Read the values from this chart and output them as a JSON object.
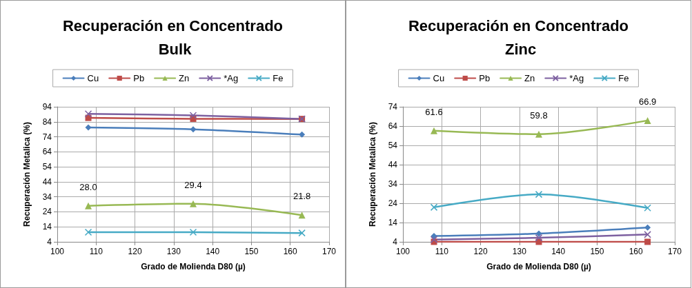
{
  "chart_data": [
    {
      "type": "line",
      "title": "Recuperación en Concentrado Bulk",
      "xlabel": "Grado de Molienda D80 (µ)",
      "ylabel": "Recuperación Metalica (%)",
      "x": [
        108,
        135,
        163
      ],
      "xlim": [
        100,
        170
      ],
      "xticks": [
        100,
        110,
        120,
        130,
        140,
        150,
        160,
        170
      ],
      "ylim": [
        4,
        94
      ],
      "yticks": [
        4,
        14,
        24,
        34,
        44,
        54,
        64,
        74,
        84,
        94
      ],
      "grid": true,
      "legend": "top",
      "series": [
        {
          "name": "Cu",
          "color": "#4a7ebb",
          "marker": "diamond",
          "values": [
            80.2,
            79.0,
            75.5
          ]
        },
        {
          "name": "Pb",
          "color": "#be4b48",
          "marker": "square",
          "values": [
            86.6,
            86.0,
            85.9
          ]
        },
        {
          "name": "Zn",
          "color": "#98b954",
          "marker": "triangle",
          "values": [
            28.0,
            29.4,
            21.8
          ],
          "value_labels": [
            "28.0",
            "29.4",
            "21.8"
          ]
        },
        {
          "name": "*Ag",
          "color": "#7d60a0",
          "marker": "cross",
          "values": [
            89.3,
            88.3,
            85.9
          ]
        },
        {
          "name": "Fe",
          "color": "#46aac5",
          "marker": "cross",
          "values": [
            10.4,
            10.4,
            9.9
          ]
        }
      ]
    },
    {
      "type": "line",
      "title": "Recuperación en Concentrado Zinc",
      "xlabel": "Grado de Molienda D80 (µ)",
      "ylabel": "Recuperación Metalica (%)",
      "x": [
        108,
        135,
        163
      ],
      "xlim": [
        100,
        170
      ],
      "xticks": [
        100,
        110,
        120,
        130,
        140,
        150,
        160,
        170
      ],
      "ylim": [
        4,
        74
      ],
      "yticks": [
        4,
        14,
        24,
        34,
        44,
        54,
        64,
        74
      ],
      "grid": true,
      "legend": "top",
      "series": [
        {
          "name": "Cu",
          "color": "#4a7ebb",
          "marker": "diamond",
          "values": [
            7.0,
            8.3,
            11.4
          ]
        },
        {
          "name": "Pb",
          "color": "#be4b48",
          "marker": "square",
          "values": [
            4.0,
            4.0,
            4.0
          ]
        },
        {
          "name": "Zn",
          "color": "#98b954",
          "marker": "triangle",
          "values": [
            61.6,
            59.8,
            66.9
          ],
          "value_labels": [
            "61.6",
            "59.8",
            "66.9"
          ]
        },
        {
          "name": "*Ag",
          "color": "#7d60a0",
          "marker": "cross",
          "values": [
            5.2,
            6.1,
            7.8
          ]
        },
        {
          "name": "Fe",
          "color": "#46aac5",
          "marker": "cross",
          "values": [
            21.9,
            28.6,
            21.6
          ]
        }
      ]
    }
  ]
}
